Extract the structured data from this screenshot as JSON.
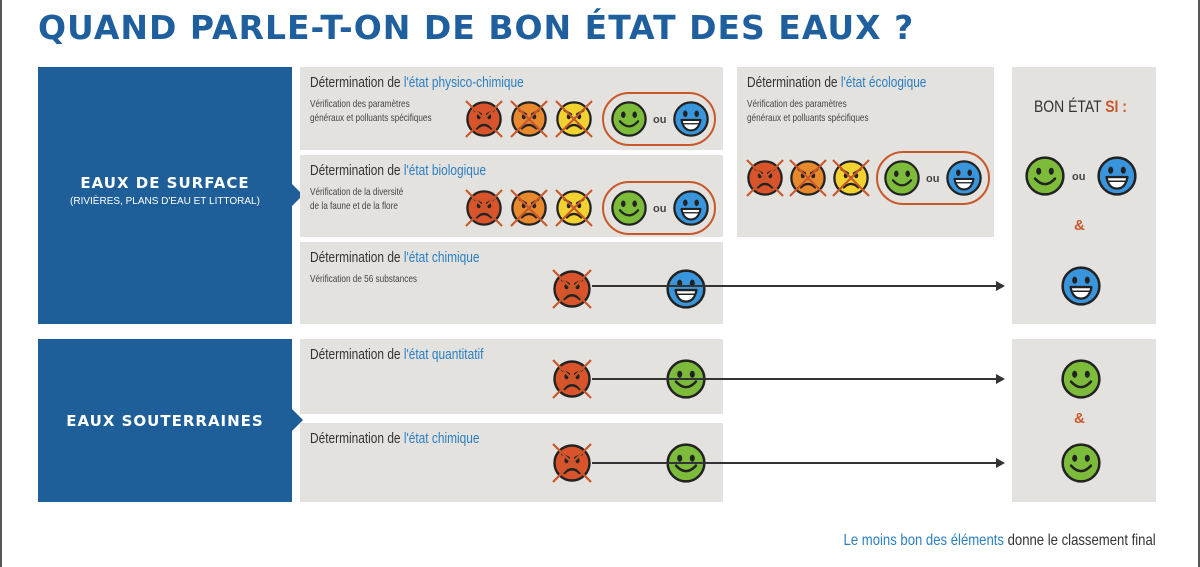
{
  "title": "QUAND PARLE-T-ON DE BON ÉTAT DES EAUX ?",
  "surface": {
    "label": "EAUX DE SURFACE",
    "sublabel": "(RIVIÈRES, PLANS D'EAU ET LITTORAL)"
  },
  "souterraines": {
    "label": "EAUX SOUTERRAINES"
  },
  "prefix": "Détermination de ",
  "panels": {
    "physico": {
      "highlight": "l'état physico-chimique",
      "desc1": "Vérification des paramètres",
      "desc2": "généraux et polluants spécifiques"
    },
    "biologique": {
      "highlight": "l'état biologique",
      "desc1": "Vérification de la diversité",
      "desc2": "de la faune et de la flore"
    },
    "chimique_surface": {
      "highlight": "l'état chimique",
      "desc1": "Vérification de 56 substances"
    },
    "ecologique": {
      "highlight": "l'état écologique",
      "desc1": "Vérification des paramètres",
      "desc2": "généraux et polluants spécifiques"
    },
    "quantitatif": {
      "highlight": "l'état quantitatif"
    },
    "chimique_sout": {
      "highlight": "l'état chimique"
    }
  },
  "ou": "ou",
  "amp": "&",
  "bon_etat": {
    "text": "BON ÉTAT ",
    "si": "SI :"
  },
  "footer": {
    "highlight": "Le moins bon des éléments",
    "rest": " donne le classement final"
  },
  "colors": {
    "blue": "#1e5f9a",
    "red": "#d9532b",
    "orange": "#e8892d",
    "yellow": "#f2d230",
    "green": "#7dbb3a",
    "lightblue": "#3a96dc",
    "cross": "#c8572a"
  }
}
